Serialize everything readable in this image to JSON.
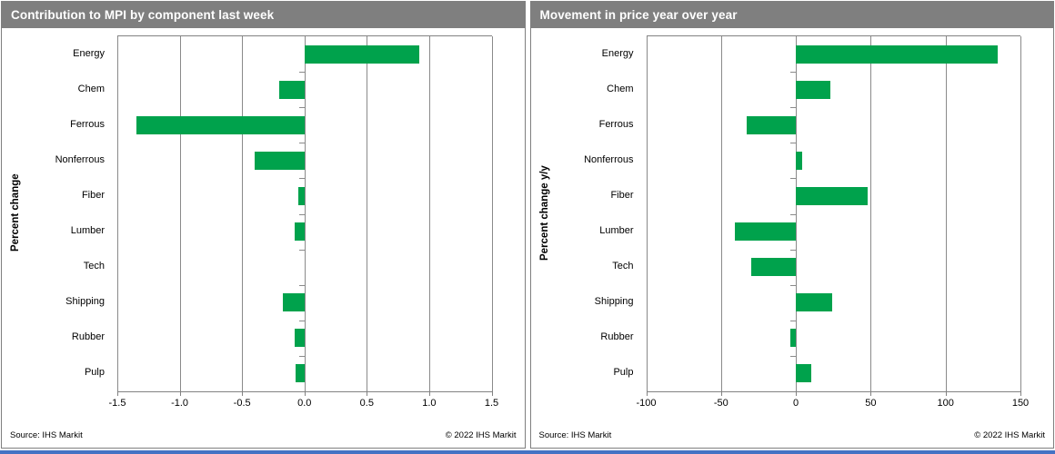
{
  "page": {
    "bottom_bar_color": "#4472c4"
  },
  "chart_data": [
    {
      "type": "bar",
      "orientation": "horizontal",
      "title": "Contribution to MPI by component last week",
      "ylabel": "Percent change",
      "categories": [
        "Energy",
        "Chem",
        "Ferrous",
        "Nonferrous",
        "Fiber",
        "Lumber",
        "Tech",
        "Shipping",
        "Rubber",
        "Pulp"
      ],
      "values": [
        0.92,
        -0.2,
        -1.35,
        -0.4,
        -0.05,
        -0.08,
        0,
        -0.17,
        -0.08,
        -0.07
      ],
      "xlim": [
        -1.5,
        1.5
      ],
      "tick_values": [
        -1.5,
        -1.0,
        -0.5,
        0.0,
        0.5,
        1.0,
        1.5
      ],
      "tick_labels": [
        "-1.5",
        "-1.0",
        "-0.5",
        "0.0",
        "0.5",
        "1.0",
        "1.5"
      ],
      "grid": true,
      "bar_color": "#00a24c",
      "source": "Source: IHS Markit",
      "copyright": "© 2022  IHS Markit"
    },
    {
      "type": "bar",
      "orientation": "horizontal",
      "title": "Movement in price year over year",
      "ylabel": "Percent change y/y",
      "categories": [
        "Energy",
        "Chem",
        "Ferrous",
        "Nonferrous",
        "Fiber",
        "Lumber",
        "Tech",
        "Shipping",
        "Rubber",
        "Pulp"
      ],
      "values": [
        135,
        23,
        -33,
        4,
        48,
        -41,
        -30,
        24,
        -4,
        10
      ],
      "xlim": [
        -100,
        150
      ],
      "tick_values": [
        -100,
        -50,
        0,
        50,
        100,
        150
      ],
      "tick_labels": [
        "-100",
        "-50",
        "0",
        "50",
        "100",
        "150"
      ],
      "grid": true,
      "bar_color": "#00a24c",
      "source": "Source: IHS Markit",
      "copyright": "© 2022  IHS Markit"
    }
  ]
}
